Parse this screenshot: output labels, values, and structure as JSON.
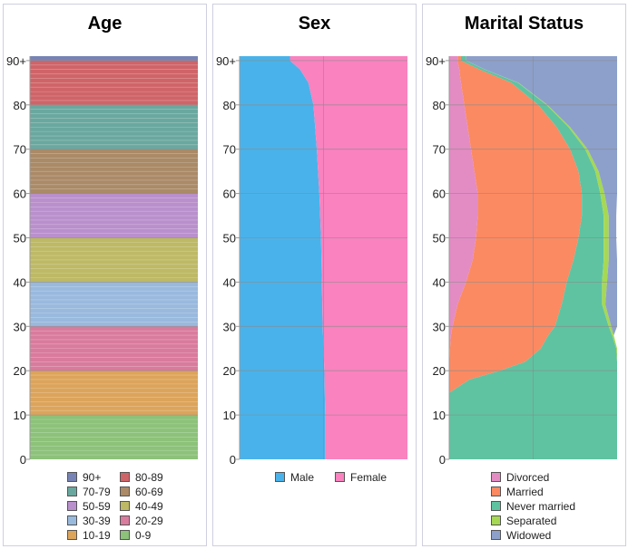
{
  "panels": {
    "age": {
      "title": "Age"
    },
    "sex": {
      "title": "Sex"
    },
    "marital": {
      "title": "Marital Status"
    }
  },
  "y_ticks": [
    "0",
    "10",
    "20",
    "30",
    "40",
    "50",
    "60",
    "70",
    "80",
    "90+"
  ],
  "chart_data": [
    {
      "type": "bar",
      "title": "Age",
      "orientation": "horizontal-stacked-100",
      "ylim": [
        0,
        90
      ],
      "categories": [
        "0-9",
        "10-19",
        "20-29",
        "30-39",
        "40-49",
        "50-59",
        "60-69",
        "70-79",
        "80-89",
        "90+"
      ],
      "band_ranges": [
        [
          0,
          10
        ],
        [
          10,
          20
        ],
        [
          20,
          30
        ],
        [
          30,
          40
        ],
        [
          40,
          50
        ],
        [
          50,
          60
        ],
        [
          60,
          70
        ],
        [
          70,
          80
        ],
        [
          80,
          90
        ],
        [
          90,
          91
        ]
      ],
      "colors": [
        "#8cc279",
        "#dca45b",
        "#d97b9d",
        "#99b9dd",
        "#bdb965",
        "#b98fcc",
        "#aa8a67",
        "#6aa89f",
        "#cf6468",
        "#7683b4"
      ],
      "legend": [
        {
          "label": "90+",
          "color": "#7683b4"
        },
        {
          "label": "80-89",
          "color": "#cf6468"
        },
        {
          "label": "70-79",
          "color": "#6aa89f"
        },
        {
          "label": "60-69",
          "color": "#aa8a67"
        },
        {
          "label": "50-59",
          "color": "#b98fcc"
        },
        {
          "label": "40-49",
          "color": "#bdb965"
        },
        {
          "label": "30-39",
          "color": "#99b9dd"
        },
        {
          "label": "20-29",
          "color": "#d97b9d"
        },
        {
          "label": "10-19",
          "color": "#dca45b"
        },
        {
          "label": "0-9",
          "color": "#8cc279"
        }
      ]
    },
    {
      "type": "area",
      "title": "Sex",
      "orientation": "horizontal-stacked-100",
      "ylim": [
        0,
        90
      ],
      "y": [
        0,
        10,
        20,
        30,
        40,
        50,
        60,
        70,
        80,
        85,
        88,
        90
      ],
      "series": [
        {
          "name": "Male",
          "color": "#4ab2ea",
          "values": [
            0.51,
            0.51,
            0.505,
            0.495,
            0.49,
            0.485,
            0.475,
            0.46,
            0.44,
            0.41,
            0.36,
            0.3
          ]
        },
        {
          "name": "Female",
          "color": "#f982bf",
          "values": [
            0.49,
            0.49,
            0.495,
            0.505,
            0.51,
            0.515,
            0.525,
            0.54,
            0.56,
            0.59,
            0.64,
            0.7
          ]
        }
      ],
      "legend": [
        {
          "label": "Male",
          "color": "#4ab2ea"
        },
        {
          "label": "Female",
          "color": "#f982bf"
        }
      ]
    },
    {
      "type": "area",
      "title": "Marital Status",
      "orientation": "horizontal-stacked-100",
      "ylim": [
        0,
        90
      ],
      "y": [
        0,
        15,
        18,
        20,
        22,
        25,
        28,
        30,
        35,
        40,
        45,
        50,
        55,
        60,
        65,
        70,
        75,
        80,
        85,
        88,
        90
      ],
      "series": [
        {
          "name": "Never married",
          "color": "#5fc3a1",
          "values": [
            1,
            1,
            0.88,
            0.7,
            0.55,
            0.45,
            0.38,
            0.32,
            0.24,
            0.21,
            0.18,
            0.15,
            0.13,
            0.11,
            0.1,
            0.09,
            0.07,
            0.05,
            0.04,
            0.03,
            0.03
          ]
        },
        {
          "name": "Separated",
          "color": "#a6d854",
          "values": [
            0,
            0,
            0,
            0,
            0,
            0.005,
            0.01,
            0.015,
            0.02,
            0.03,
            0.03,
            0.03,
            0.03,
            0.025,
            0.02,
            0.015,
            0.01,
            0.005,
            0.003,
            0.002,
            0.001
          ]
        },
        {
          "name": "Married",
          "color": "#fb8a62",
          "values": [
            0,
            0,
            0.12,
            0.3,
            0.45,
            0.54,
            0.58,
            0.61,
            0.62,
            0.6,
            0.6,
            0.61,
            0.62,
            0.62,
            0.62,
            0.59,
            0.53,
            0.44,
            0.3,
            0.12,
            0.02
          ]
        },
        {
          "name": "Divorced",
          "color": "#e38cc4",
          "values": [
            0,
            0,
            0,
            0,
            0.002,
            0.005,
            0.01,
            0.02,
            0.05,
            0.1,
            0.14,
            0.16,
            0.17,
            0.17,
            0.15,
            0.13,
            0.11,
            0.09,
            0.07,
            0.06,
            0.05
          ]
        },
        {
          "name": "Widowed",
          "color": "#8da0cb",
          "values": [
            0,
            0,
            0,
            0,
            0,
            0,
            0,
            0.035,
            0.07,
            0.06,
            0.05,
            0.045,
            0.045,
            0.075,
            0.11,
            0.175,
            0.28,
            0.415,
            0.587,
            0.788,
            0.9
          ]
        }
      ],
      "legend": [
        {
          "label": "Divorced",
          "color": "#e38cc4"
        },
        {
          "label": "Married",
          "color": "#fb8a62"
        },
        {
          "label": "Never married",
          "color": "#5fc3a1"
        },
        {
          "label": "Separated",
          "color": "#a6d854"
        },
        {
          "label": "Widowed",
          "color": "#8da0cb"
        }
      ]
    }
  ]
}
